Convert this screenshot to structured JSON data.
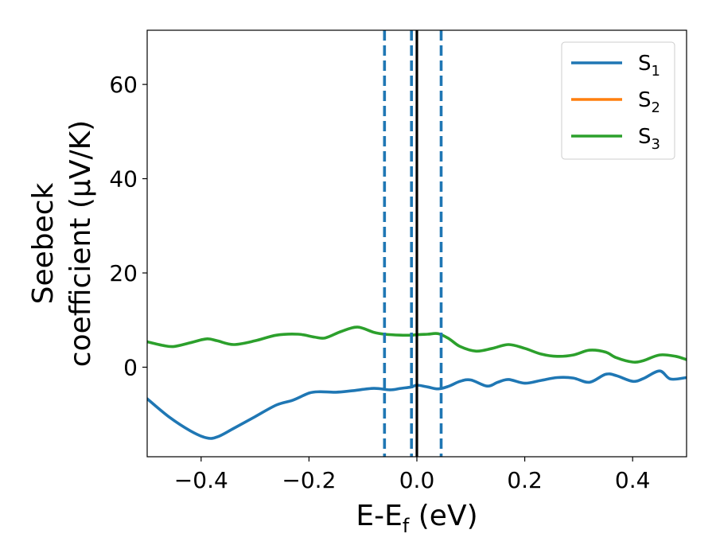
{
  "chart_data": {
    "type": "line",
    "xlabel": "E-E$_f$ (eV)",
    "xlabel_main": "E-E",
    "xlabel_sub": "f",
    "xlabel_unit": " (eV)",
    "ylabel_line1": "Seebeck",
    "ylabel_line2": "coefficient  (μV/K)",
    "xlim": [
      -0.5,
      0.5
    ],
    "ylim": [
      -19,
      71.5
    ],
    "xticks": [
      -0.4,
      -0.2,
      0.0,
      0.2,
      0.4
    ],
    "xtick_labels": [
      "−0.4",
      "−0.2",
      "0.0",
      "0.2",
      "0.4"
    ],
    "yticks": [
      0,
      20,
      40,
      60
    ],
    "ytick_labels": [
      "0",
      "20",
      "40",
      "60"
    ],
    "grid": false,
    "legend_position": "top-right",
    "series": [
      {
        "name": "S1",
        "label_main": "S",
        "label_sub": "1",
        "color": "#1f77b4",
        "x": [
          -0.5,
          -0.46,
          -0.42,
          -0.39,
          -0.37,
          -0.34,
          -0.3,
          -0.26,
          -0.23,
          -0.2,
          -0.18,
          -0.15,
          -0.12,
          -0.08,
          -0.05,
          -0.03,
          -0.01,
          0.0,
          0.02,
          0.04,
          0.06,
          0.08,
          0.1,
          0.13,
          0.15,
          0.17,
          0.2,
          0.23,
          0.26,
          0.29,
          0.32,
          0.35,
          0.37,
          0.4,
          0.42,
          0.45,
          0.47,
          0.5
        ],
        "y": [
          -6.7,
          -10.5,
          -13.5,
          -15.0,
          -14.8,
          -13.0,
          -10.5,
          -8.0,
          -7.0,
          -5.5,
          -5.2,
          -5.3,
          -5.0,
          -4.5,
          -4.8,
          -4.5,
          -4.2,
          -3.8,
          -4.2,
          -4.6,
          -4.0,
          -3.0,
          -2.7,
          -4.0,
          -3.2,
          -2.6,
          -3.4,
          -2.8,
          -2.2,
          -2.3,
          -3.2,
          -1.5,
          -1.8,
          -3.0,
          -2.4,
          -0.8,
          -2.5,
          -2.2
        ]
      },
      {
        "name": "S2",
        "label_main": "S",
        "label_sub": "2",
        "color": "#ff7f0e",
        "x": [],
        "y": []
      },
      {
        "name": "S3",
        "label_main": "S",
        "label_sub": "3",
        "color": "#2ca02c",
        "x": [
          -0.5,
          -0.47,
          -0.45,
          -0.42,
          -0.39,
          -0.37,
          -0.34,
          -0.3,
          -0.26,
          -0.22,
          -0.19,
          -0.17,
          -0.14,
          -0.11,
          -0.08,
          -0.06,
          -0.03,
          -0.01,
          0.0,
          0.02,
          0.04,
          0.06,
          0.08,
          0.11,
          0.14,
          0.17,
          0.2,
          0.23,
          0.26,
          0.29,
          0.32,
          0.35,
          0.37,
          0.4,
          0.42,
          0.45,
          0.48,
          0.5
        ],
        "y": [
          5.4,
          4.6,
          4.4,
          5.2,
          6.0,
          5.6,
          4.8,
          5.6,
          6.8,
          7.0,
          6.4,
          6.2,
          7.6,
          8.5,
          7.4,
          7.0,
          6.8,
          6.8,
          6.9,
          7.0,
          7.1,
          6.0,
          4.4,
          3.4,
          4.0,
          4.8,
          4.0,
          2.8,
          2.3,
          2.6,
          3.6,
          3.2,
          2.0,
          1.1,
          1.4,
          2.6,
          2.3,
          1.6
        ]
      }
    ],
    "vlines": [
      {
        "x": -0.06,
        "style": "dashed",
        "color": "#1f77b4"
      },
      {
        "x": -0.01,
        "style": "dashed",
        "color": "#1f77b4"
      },
      {
        "x": 0.0,
        "style": "solid",
        "color": "#000000"
      },
      {
        "x": 0.045,
        "style": "dashed",
        "color": "#1f77b4"
      }
    ]
  }
}
